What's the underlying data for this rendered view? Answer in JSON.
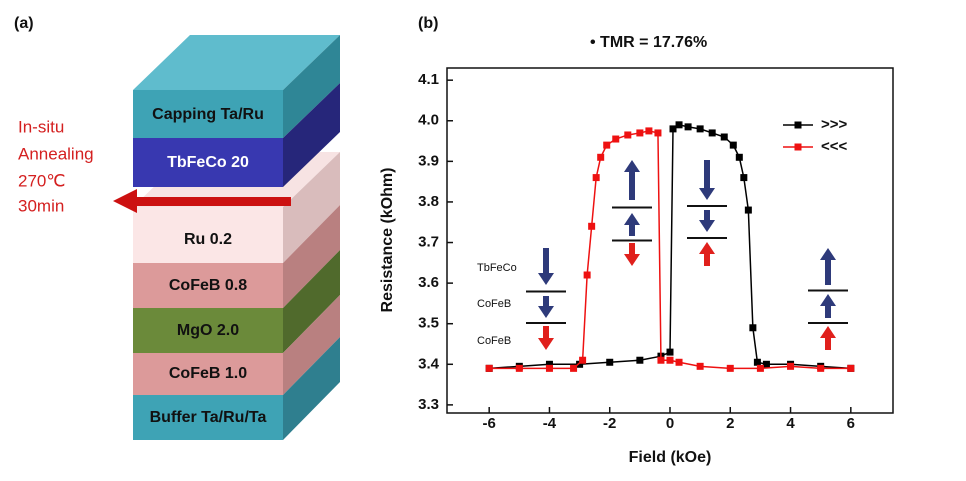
{
  "panel_a": {
    "label": "(a)",
    "layers": [
      "Capping Ta/Ru",
      "TbFeCo 20",
      "Ru 0.2",
      "CoFeB 0.8",
      "MgO 2.0",
      "CoFeB 1.0",
      "Buffer Ta/Ru/Ta"
    ],
    "annotation": [
      "In-situ",
      "Annealing",
      "270℃",
      "30min"
    ]
  },
  "chart_data": {
    "type": "line",
    "label": "(b)",
    "title": "• TMR = 17.76%",
    "x_label": "Field (kOe)",
    "y_label": "Resistance (kOhm)",
    "xlim": [
      -7.4,
      7.4
    ],
    "ylim": [
      3.28,
      4.13
    ],
    "xticks": [
      -6,
      -4,
      -2,
      0,
      2,
      4,
      6
    ],
    "yticks": [
      3.3,
      3.4,
      3.5,
      3.6,
      3.7,
      3.8,
      3.9,
      {
        "value": 4,
        "label": "4.0"
      },
      4.1
    ],
    "legend": "top-right",
    "inset_labels": [
      "TbFeCo",
      "CoFeB",
      "CoFeB"
    ],
    "series": [
      {
        "name": ">>>",
        "color": "#000000",
        "x": [
          -6,
          -5,
          -4,
          -3,
          -2,
          -1,
          -0.3,
          0,
          0.1,
          0.3,
          0.6,
          1,
          1.4,
          1.8,
          2.1,
          2.3,
          2.45,
          2.6,
          2.75,
          2.9,
          3.2,
          4,
          5,
          6
        ],
        "values": [
          3.39,
          3.395,
          3.4,
          3.4,
          3.405,
          3.41,
          3.42,
          3.43,
          3.98,
          3.99,
          3.985,
          3.98,
          3.97,
          3.96,
          3.94,
          3.91,
          3.86,
          3.78,
          3.49,
          3.405,
          3.4,
          3.4,
          3.395,
          3.39
        ]
      },
      {
        "name": "<<<",
        "color": "#ee1111",
        "x": [
          6,
          5,
          4,
          3,
          2,
          1,
          0.3,
          0,
          -0.3,
          -0.4,
          -0.7,
          -1,
          -1.4,
          -1.8,
          -2.1,
          -2.3,
          -2.45,
          -2.6,
          -2.75,
          -2.9,
          -3.2,
          -4,
          -5,
          -6
        ],
        "values": [
          3.39,
          3.39,
          3.395,
          3.39,
          3.39,
          3.395,
          3.405,
          3.41,
          3.41,
          3.97,
          3.975,
          3.97,
          3.965,
          3.955,
          3.94,
          3.91,
          3.86,
          3.74,
          3.62,
          3.41,
          3.39,
          3.39,
          3.39,
          3.39
        ]
      }
    ]
  }
}
